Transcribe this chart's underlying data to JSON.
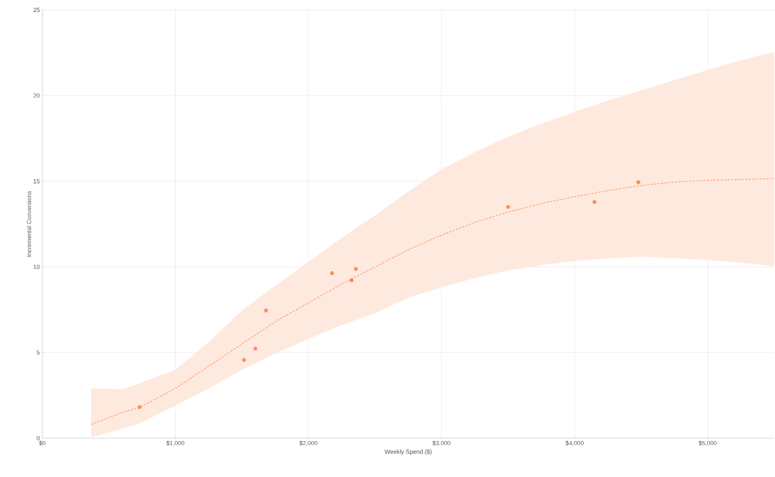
{
  "chart_data": {
    "type": "scatter",
    "xlabel": "Weekly Spend ($)",
    "ylabel": "Incremental Conversions",
    "xlim": [
      0,
      5500
    ],
    "ylim": [
      0,
      25
    ],
    "xticks": [
      {
        "value": 0,
        "label": "$0"
      },
      {
        "value": 1000,
        "label": "$1,000"
      },
      {
        "value": 2000,
        "label": "$2,000"
      },
      {
        "value": 3000,
        "label": "$3,000"
      },
      {
        "value": 4000,
        "label": "$4,000"
      },
      {
        "value": 5000,
        "label": "$5,000"
      }
    ],
    "yticks": [
      0,
      5,
      10,
      15,
      20,
      25
    ],
    "grid": true,
    "series": [
      {
        "type": "line",
        "color": "#fb9a68",
        "line_style": "dashed",
        "marker": "none",
        "x": [
          367,
          600,
          730,
          1000,
          1250,
          1500,
          1750,
          2000,
          2250,
          2500,
          2750,
          3000,
          3250,
          3500,
          3750,
          4000,
          4250,
          4500,
          4750,
          5000,
          5250,
          5500
        ],
        "values": [
          0.8,
          1.5,
          1.8,
          2.9,
          4.2,
          5.5,
          6.8,
          7.9,
          9.0,
          10.0,
          11.0,
          11.85,
          12.6,
          13.2,
          13.7,
          14.1,
          14.45,
          14.75,
          14.95,
          15.05,
          15.1,
          15.15
        ],
        "upper": [
          2.9,
          2.85,
          3.2,
          4.0,
          5.6,
          7.45,
          8.9,
          10.3,
          11.7,
          13.0,
          14.4,
          15.7,
          16.7,
          17.6,
          18.35,
          19.05,
          19.7,
          20.3,
          20.9,
          21.5,
          22.05,
          22.55
        ],
        "lower": [
          0.05,
          0.55,
          0.85,
          1.9,
          2.9,
          4.0,
          4.95,
          5.8,
          6.6,
          7.3,
          8.2,
          8.8,
          9.35,
          9.8,
          10.1,
          10.35,
          10.5,
          10.6,
          10.5,
          10.4,
          10.25,
          10.05
        ]
      },
      {
        "color": "#fb8c5a",
        "marker": "circle",
        "x": [
          730,
          1516,
          1601,
          1681,
          2176,
          2324,
          2356,
          3500,
          4149,
          4479
        ],
        "values": [
          1.81,
          4.57,
          5.23,
          7.45,
          9.63,
          9.22,
          9.88,
          13.5,
          13.79,
          14.94
        ]
      }
    ]
  }
}
